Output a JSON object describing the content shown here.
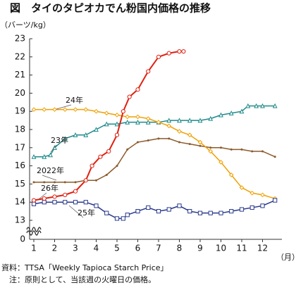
{
  "chart_data": {
    "type": "line",
    "title": "図　タイのタピオカでん粉国内価格の推移",
    "y_label": "（バーツ/kg）",
    "x_label": "（月）",
    "y_origin_label": "0",
    "xlim": [
      1,
      12.9
    ],
    "xticks": [
      1,
      2,
      3,
      4,
      5,
      6,
      7,
      8,
      9,
      10,
      11,
      12
    ],
    "ylim": [
      13,
      23
    ],
    "yticks": [
      13,
      14,
      15,
      16,
      17,
      18,
      19,
      20,
      21,
      22,
      23
    ],
    "grid": false,
    "series": [
      {
        "name": "2022年",
        "color": "#8b5a2b",
        "marker": "dot",
        "x": [
          1,
          1.5,
          2,
          2.5,
          3,
          3.5,
          4,
          4.5,
          5,
          5.5,
          6,
          6.5,
          7,
          7.5,
          8,
          8.5,
          9,
          9.5,
          10,
          10.5,
          11,
          11.5,
          12,
          12.6
        ],
        "values": [
          15.1,
          15.1,
          15.1,
          15.1,
          15.1,
          15.2,
          15.2,
          15.5,
          16,
          16.9,
          17.3,
          17.4,
          17.5,
          17.5,
          17.3,
          17.2,
          17.1,
          17.0,
          17.0,
          16.9,
          16.9,
          16.8,
          16.8,
          16.5
        ]
      },
      {
        "name": "23年",
        "color": "#1f8a8a",
        "marker": "triangle",
        "x": [
          1,
          1.5,
          1.8,
          2,
          2.5,
          3,
          3.5,
          4,
          4.5,
          5,
          5.5,
          6,
          6.5,
          7,
          7.5,
          8,
          8.5,
          9,
          9.5,
          10,
          10.5,
          11,
          11.3,
          11.7,
          12,
          12.6
        ],
        "values": [
          16.5,
          16.5,
          16.6,
          17.0,
          17.5,
          17.7,
          17.7,
          18.0,
          18.3,
          18.3,
          18.4,
          18.4,
          18.4,
          18.4,
          18.5,
          18.5,
          18.5,
          18.5,
          18.6,
          18.8,
          18.9,
          19.0,
          19.3,
          19.3,
          19.3,
          19.3
        ]
      },
      {
        "name": "24年",
        "color": "#f0a000",
        "marker": "diamond",
        "x": [
          1,
          1.5,
          2,
          2.5,
          3,
          3.5,
          4,
          4.5,
          5,
          5.5,
          6,
          6.5,
          7,
          7.5,
          8,
          8.5,
          9,
          9.5,
          10,
          10.5,
          11,
          11.5,
          12,
          12.6
        ],
        "values": [
          19.1,
          19.1,
          19.1,
          19.1,
          19.1,
          19.1,
          19.0,
          18.9,
          18.8,
          18.7,
          18.7,
          18.6,
          18.4,
          18.2,
          17.9,
          17.7,
          17.3,
          16.8,
          16.2,
          15.5,
          14.8,
          14.5,
          14.4,
          14.2
        ]
      },
      {
        "name": "25年",
        "color": "#2a3a8c",
        "marker": "square",
        "x": [
          1,
          1.5,
          2,
          2.5,
          3,
          3.5,
          4,
          4.5,
          5,
          5.3,
          5.5,
          6,
          6.5,
          7,
          7.5,
          8,
          8.5,
          9,
          9.5,
          10,
          10.5,
          11,
          11.5,
          12,
          12.6
        ],
        "values": [
          13.9,
          14.0,
          14.0,
          14.0,
          14.0,
          14.0,
          13.8,
          13.4,
          13.1,
          13.1,
          13.3,
          13.5,
          13.7,
          13.5,
          13.6,
          13.8,
          13.5,
          13.4,
          13.4,
          13.4,
          13.5,
          13.6,
          13.7,
          13.8,
          14.1
        ]
      },
      {
        "name": "26年",
        "color": "#e02010",
        "marker": "circle",
        "x": [
          1,
          1.5,
          2,
          2.5,
          3,
          3.5,
          3.8,
          4.2,
          4.6,
          5,
          5.3,
          5.6,
          6,
          6.5,
          7,
          7.5,
          8,
          8.2
        ],
        "values": [
          14.1,
          14.2,
          14.3,
          14.4,
          14.6,
          15.2,
          16.0,
          16.5,
          16.8,
          17.7,
          19.0,
          19.8,
          20.2,
          21.2,
          22.0,
          22.2,
          22.3,
          22.3
        ]
      }
    ],
    "notes": [
      "資料：TTSA「Weekly Tapioca Starch Price」",
      "　注：原則として、当該週の火曜日の価格。"
    ]
  }
}
